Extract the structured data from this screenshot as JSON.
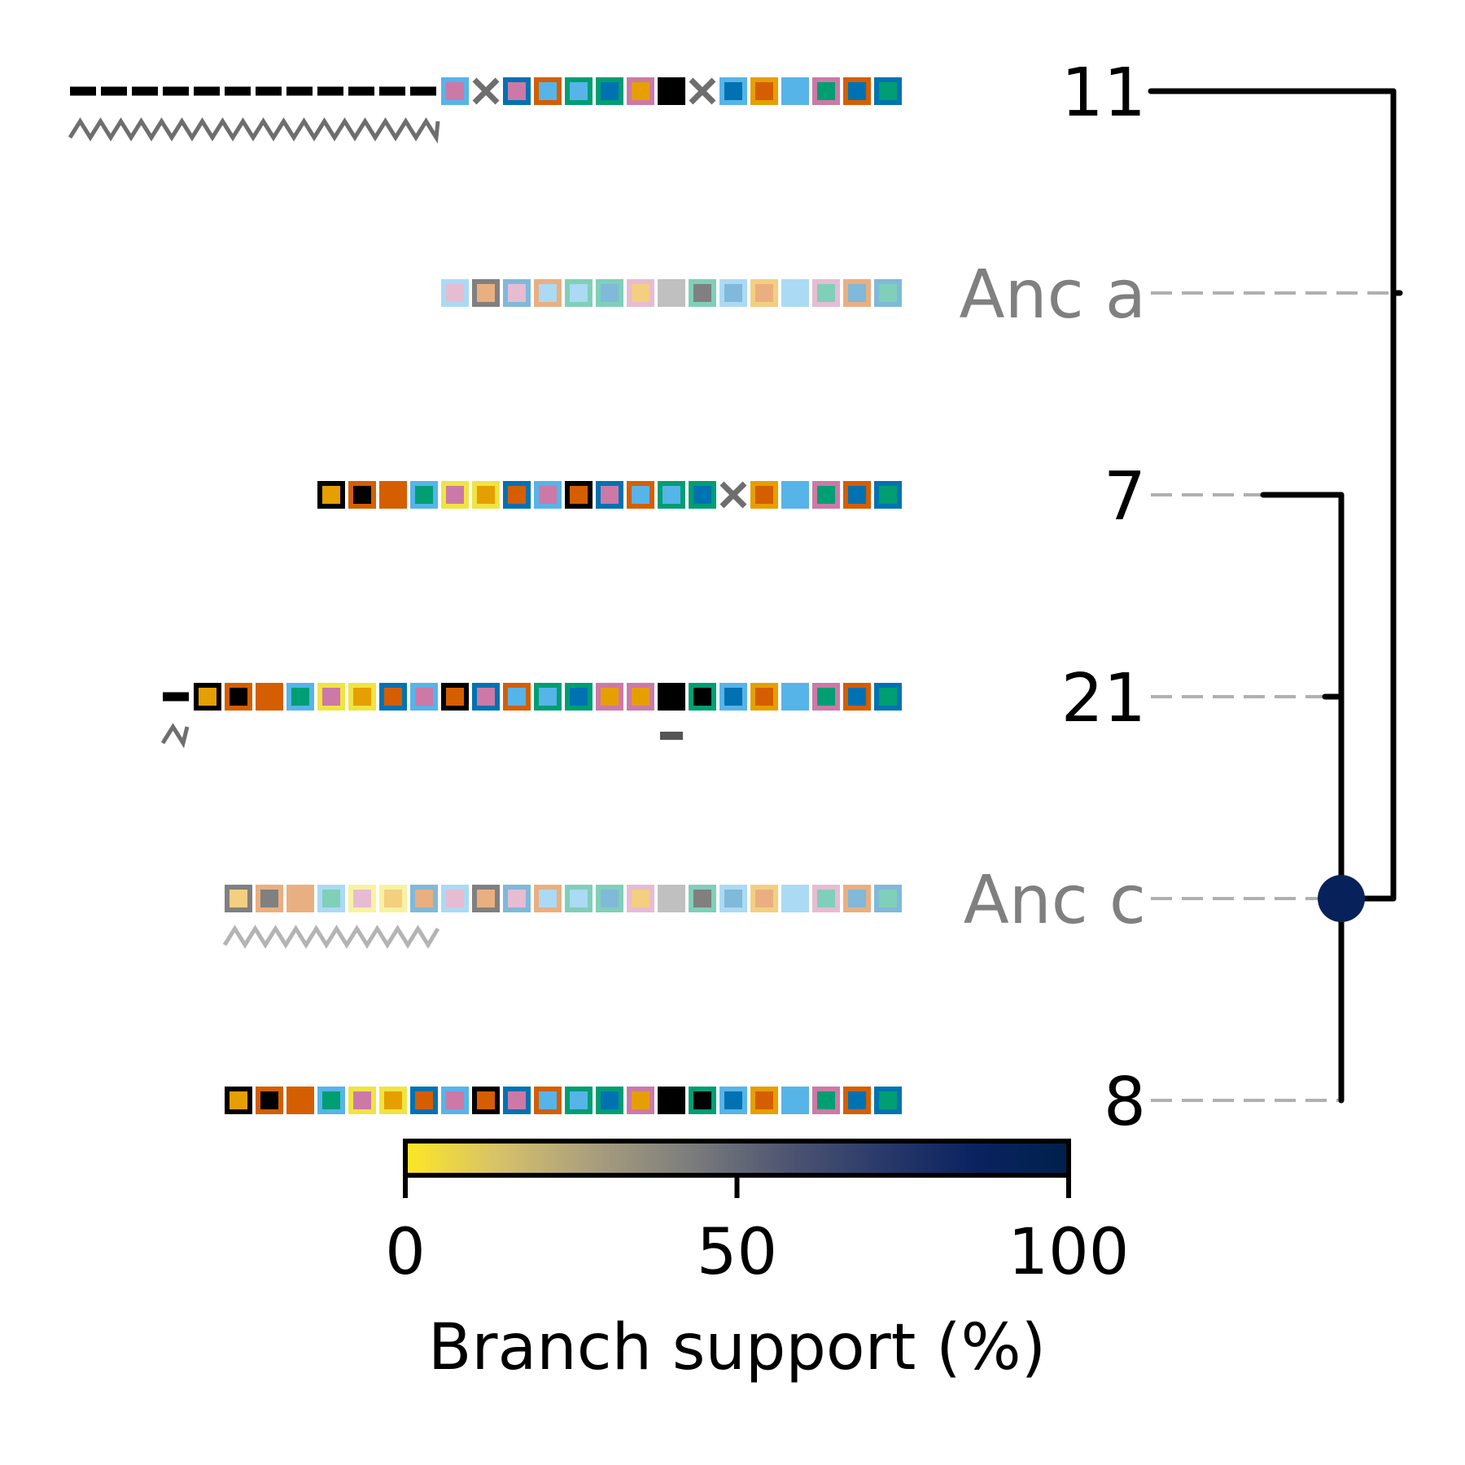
{
  "palette": {
    "k": "#000000",
    "O": "#E69F00",
    "S": "#56B4E9",
    "G": "#009E73",
    "Y": "#F0E442",
    "B": "#0072B2",
    "R": "#D55E00",
    "P": "#CC79A7",
    "X": "#808080"
  },
  "tree": {
    "leaves": [
      {
        "id": "leaf-11",
        "label": "11",
        "ancestral": false,
        "cells": [
          "S:P",
          "x",
          "B:P",
          "R:S",
          "G:S",
          "G:B",
          "P:O",
          "k:k",
          "x",
          "S:B",
          "O:R",
          "S:S",
          "P:G",
          "R:B",
          "B:G"
        ],
        "prefix_dashes": 12,
        "wavy_below": true,
        "marks_below": []
      },
      {
        "id": "anc-a",
        "label": "Anc a",
        "ancestral": true,
        "cells": [
          "S:P",
          "k:R",
          "B:P",
          "R:S",
          "G:S",
          "G:B",
          "P:O",
          "X:X",
          "G:k",
          "S:B",
          "O:R",
          "S:S",
          "P:G",
          "R:B",
          "B:G"
        ],
        "prefix_dashes": 0,
        "wavy_below": false,
        "marks_below": []
      },
      {
        "id": "leaf-7",
        "label": "7",
        "ancestral": false,
        "cells": [
          "k:O",
          "R:k",
          "R:R",
          "S:G",
          "Y:P",
          "Y:O",
          "B:R",
          "S:P",
          "k:R",
          "B:P",
          "R:S",
          "G:S",
          "G:B",
          "x",
          "O:R",
          "S:S",
          "P:G",
          "R:B",
          "B:G"
        ],
        "prefix_dashes": 0,
        "wavy_below": false,
        "marks_below": []
      },
      {
        "id": "leaf-21",
        "label": "21",
        "ancestral": false,
        "cells": [
          "k:O",
          "R:k",
          "R:R",
          "S:G",
          "Y:P",
          "Y:O",
          "B:R",
          "S:P",
          "k:R",
          "B:P",
          "R:S",
          "G:S",
          "G:B",
          "P:O",
          "P:O",
          "k:k",
          "G:k",
          "S:B",
          "O:R",
          "S:S",
          "P:G",
          "R:B",
          "B:G"
        ],
        "prefix_dashes": 1,
        "wavy_below": true,
        "marks_below": [
          15
        ]
      },
      {
        "id": "anc-c",
        "label": "Anc c",
        "ancestral": true,
        "cells": [
          "k:O",
          "R:k",
          "R:R",
          "S:G",
          "Y:P",
          "Y:O",
          "B:R",
          "S:P",
          "k:R",
          "B:P",
          "R:S",
          "G:S",
          "G:B",
          "P:O",
          "X:X",
          "G:k",
          "S:B",
          "O:R",
          "S:S",
          "P:G",
          "R:B",
          "B:G"
        ],
        "prefix_dashes": 0,
        "wavy_below": true,
        "marks_below": []
      },
      {
        "id": "leaf-8",
        "label": "8",
        "ancestral": false,
        "cells": [
          "k:O",
          "R:k",
          "R:R",
          "S:G",
          "Y:P",
          "Y:O",
          "B:R",
          "S:P",
          "k:R",
          "B:P",
          "R:S",
          "G:S",
          "G:B",
          "P:O",
          "k:k",
          "G:k",
          "S:B",
          "O:R",
          "S:S",
          "P:G",
          "R:B",
          "B:G"
        ],
        "prefix_dashes": 0,
        "wavy_below": false,
        "marks_below": []
      }
    ],
    "node_support": 90
  },
  "colorbar": {
    "ticks": [
      "0",
      "50",
      "100"
    ],
    "tick_values": [
      0,
      50,
      100
    ],
    "range": [
      0,
      100
    ],
    "label": "Branch support (%)",
    "stops": [
      "#FDE725",
      "#D6C16A",
      "#A89E7E",
      "#7C7D7C",
      "#4F5672",
      "#2A3A6A",
      "#0A2360",
      "#00204C"
    ]
  }
}
